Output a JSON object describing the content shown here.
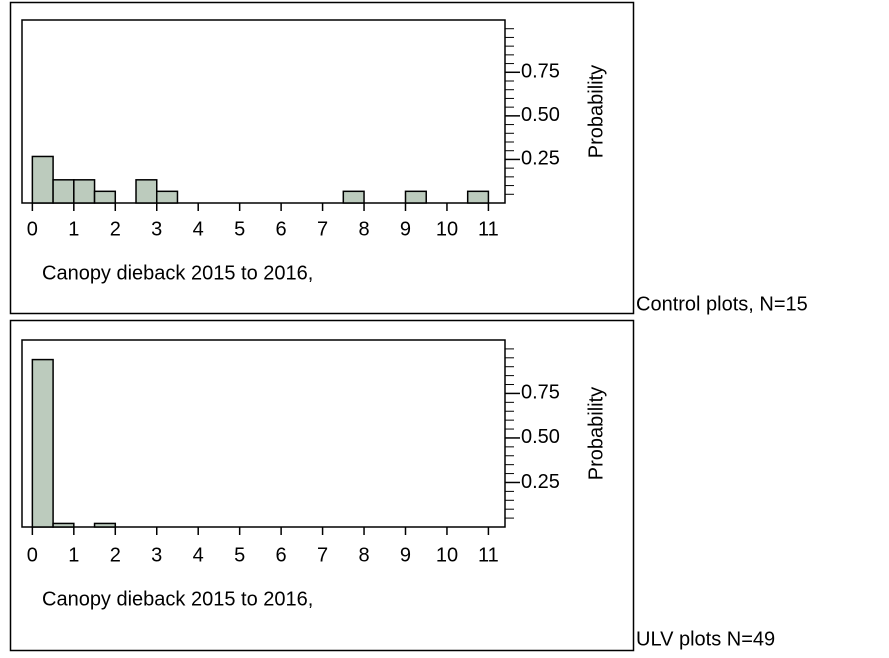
{
  "chart_data": [
    {
      "type": "histogram",
      "annotation": "Control plots, N=15",
      "xlabel": "Canopy dieback 2015 to 2016,",
      "ylabel": "Probability",
      "bins": [
        0,
        0.5,
        1,
        1.5,
        2,
        2.5,
        3,
        3.5,
        4,
        4.5,
        5,
        5.5,
        6,
        6.5,
        7,
        7.5,
        8,
        8.5,
        9,
        9.5,
        10,
        10.5,
        11
      ],
      "values": [
        0.267,
        0.133,
        0.133,
        0.067,
        0,
        0.133,
        0.067,
        0,
        0,
        0,
        0,
        0,
        0,
        0,
        0,
        0.067,
        0,
        0,
        0.067,
        0,
        0,
        0.067
      ],
      "color": "#bccbbd",
      "xlim": [
        -0.25,
        11.4
      ],
      "ylim": [
        0,
        1.05
      ],
      "xticks": [
        0,
        1,
        2,
        3,
        4,
        5,
        6,
        7,
        8,
        9,
        10,
        11
      ],
      "yticks": [
        0.25,
        {
          "value": 0.5,
          "label": "0.50"
        },
        0.75
      ],
      "yminorticks": [
        0.05,
        0.1,
        0.15,
        0.2,
        0.3,
        0.35,
        0.4,
        0.45,
        0.55,
        0.6,
        0.65,
        0.7,
        0.8,
        0.85,
        0.9,
        0.95,
        1.0
      ]
    },
    {
      "type": "histogram",
      "annotation": "ULV plots N=49",
      "xlabel": "Canopy dieback 2015 to 2016,",
      "ylabel": "Probability",
      "bins": [
        0,
        0.5,
        1,
        1.5,
        2,
        2.5,
        3,
        3.5,
        4,
        4.5,
        5,
        5.5,
        6,
        6.5,
        7,
        7.5,
        8,
        8.5,
        9,
        9.5,
        10,
        10.5,
        11
      ],
      "values": [
        0.94,
        0.02,
        0,
        0.02,
        0,
        0,
        0,
        0,
        0,
        0,
        0,
        0,
        0,
        0,
        0,
        0,
        0,
        0,
        0,
        0,
        0,
        0
      ],
      "color": "#bccbbd",
      "xlim": [
        -0.25,
        11.4
      ],
      "ylim": [
        0,
        1.05
      ],
      "xticks": [
        0,
        1,
        2,
        3,
        4,
        5,
        6,
        7,
        8,
        9,
        10,
        11
      ],
      "yticks": [
        0.25,
        {
          "value": 0.5,
          "label": "0.50"
        },
        0.75
      ],
      "yminorticks": [
        0.05,
        0.1,
        0.15,
        0.2,
        0.3,
        0.35,
        0.4,
        0.45,
        0.55,
        0.6,
        0.65,
        0.7,
        0.8,
        0.85,
        0.9,
        0.95,
        1.0
      ]
    }
  ]
}
